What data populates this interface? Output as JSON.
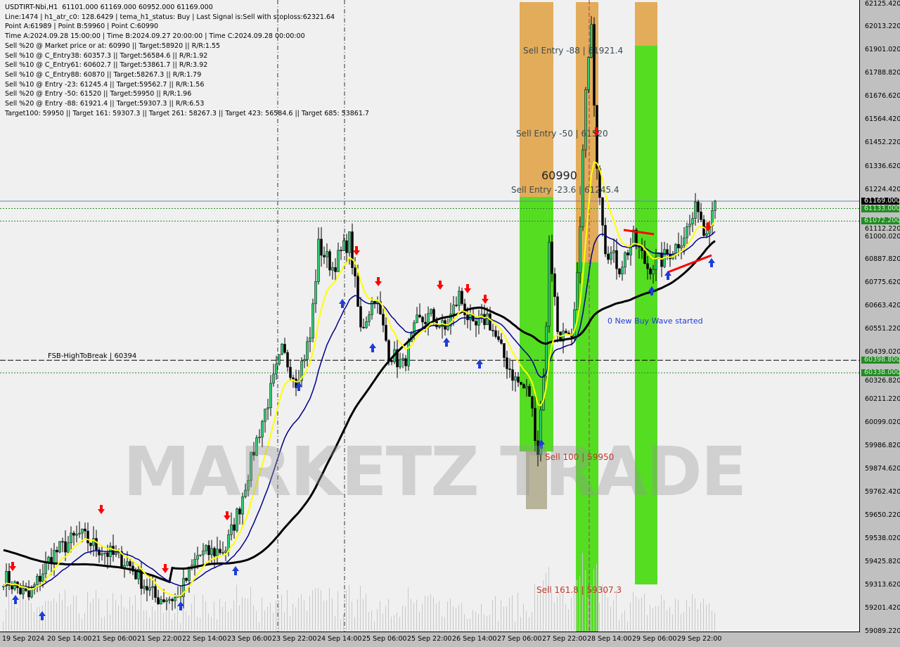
{
  "header": {
    "line1": "USDTIRT-Nbi,H1  61101.000 61169.000 60952.000 61169.000",
    "line2": "Line:1474 | h1_atr_c0: 128.6429 | tema_h1_status: Buy | Last Signal is:Sell with stoploss:62321.64",
    "line3": "Point A:61989 | Point B:59960 | Point C:60990",
    "line4": "Time A:2024.09.28 15:00:00 | Time B:2024.09.27 20:00:00 | Time C:2024.09.28 00:00:00",
    "line5": "Sell %20 @ Market price or at: 60990 || Target:58920 || R/R:1.55",
    "line6": "Sell %10 @ C_Entry38: 60357.3 || Target:56584.6 || R/R:1.92",
    "line7": "Sell %10 @ C_Entry61: 60602.7 || Target:53861.7 || R/R:3.92",
    "line8": "Sell %10 @ C_Entry88: 60870 || Target:58267.3 || R/R:1.79",
    "line9": "Sell %10 @ Entry -23: 61245.4 || Target:59562.7 || R/R:1.56",
    "line10": "Sell %20 @ Entry -50: 61520 || Target:59950 || R/R:1.96",
    "line11": "Sell %20 @ Entry -88: 61921.4 || Target:59307.3 || R/R:6.53",
    "line12": "Target100: 59950 || Target 161: 59307.3 || Target 261: 58267.3 || Target 423: 56584.6 || Target 685: 53861.7"
  },
  "annotations": {
    "fsb": "FSB-HighToBreak | 60394",
    "entry88": "Sell Entry -88 | 61921.4",
    "entry50": "Sell Entry -50 | 61520",
    "entry236": "Sell Entry -23.6 | 61245.4",
    "pointC": "60990",
    "sell100": "Sell 100 | 59950",
    "sell161": "Sell 161.8 | 59307.3",
    "newWave": "0 New Buy Wave started"
  },
  "watermark": "MARKETZ TRADE",
  "colors": {
    "bull": "#2ecc71",
    "bear": "#000000",
    "yellow": "#ffff00",
    "blue": "#00008b",
    "black": "#000000",
    "orange": "#e0a040",
    "green": "#55dd22",
    "red": "#ff0000"
  },
  "chart_data": {
    "type": "candlestick",
    "symbol": "USDTIRT-Nbi",
    "timeframe": "H1",
    "ylim": [
      59089.22,
      62125.42
    ],
    "yticks": [
      "62125.420",
      "62013.220",
      "61901.020",
      "61788.820",
      "61676.620",
      "61564.420",
      "61452.220",
      "61336.620",
      "61224.420",
      "61112.220",
      "61000.020",
      "60887.820",
      "60775.620",
      "60663.420",
      "60551.220",
      "60439.020",
      "60326.820",
      "60211.220",
      "60099.020",
      "59986.820",
      "59874.620",
      "59762.420",
      "59650.220",
      "59538.020",
      "59425.820",
      "59313.620",
      "59201.420",
      "59089.220"
    ],
    "xticks": [
      "19 Sep 2024",
      "20 Sep 14:00",
      "21 Sep 06:00",
      "21 Sep 22:00",
      "22 Sep 14:00",
      "23 Sep 06:00",
      "23 Sep 22:00",
      "24 Sep 14:00",
      "25 Sep 06:00",
      "25 Sep 22:00",
      "26 Sep 14:00",
      "27 Sep 06:00",
      "27 Sep 22:00",
      "28 Sep 14:00",
      "29 Sep 06:00",
      "29 Sep 22:00"
    ],
    "price_markers": [
      {
        "label": "61169.000",
        "kind": "current"
      },
      {
        "label": "61133.000",
        "kind": "level"
      },
      {
        "label": "61072.200",
        "kind": "level"
      },
      {
        "label": "60398.800",
        "kind": "level"
      },
      {
        "label": "60338.000",
        "kind": "level"
      }
    ],
    "levels": [
      61169,
      61133,
      61072.2,
      60398.8,
      60338
    ],
    "close_path": [
      [
        "2024-09-19 22:00",
        59351
      ],
      [
        "2024-09-20 07:00",
        59249
      ],
      [
        "2024-09-20 15:00",
        59453
      ],
      [
        "2024-09-21 01:00",
        59555
      ],
      [
        "2024-09-21 08:00",
        59487
      ],
      [
        "2024-09-21 18:00",
        59419
      ],
      [
        "2024-09-22 04:00",
        59249
      ],
      [
        "2024-09-22 12:00",
        59249
      ],
      [
        "2024-09-22 19:00",
        59453
      ],
      [
        "2024-09-23 05:00",
        59487
      ],
      [
        "2024-09-23 10:00",
        59692
      ],
      [
        "2024-09-23 15:00",
        59964
      ],
      [
        "2024-09-23 20:00",
        60202
      ],
      [
        "2024-09-24 01:00",
        60440
      ],
      [
        "2024-09-24 06:00",
        60304
      ],
      [
        "2024-09-24 11:00",
        60508
      ],
      [
        "2024-09-24 14:00",
        60951
      ],
      [
        "2024-09-24 19:00",
        60849
      ],
      [
        "2024-09-25 01:00",
        60985
      ],
      [
        "2024-09-25 05:00",
        60543
      ],
      [
        "2024-09-25 10:00",
        60713
      ],
      [
        "2024-09-25 15:00",
        60440
      ],
      [
        "2024-09-25 20:00",
        60372
      ],
      [
        "2024-09-26 01:00",
        60577
      ],
      [
        "2024-09-26 06:00",
        60611
      ],
      [
        "2024-09-26 11:00",
        60543
      ],
      [
        "2024-09-26 16:00",
        60713
      ],
      [
        "2024-09-26 21:00",
        60543
      ],
      [
        "2024-09-27 02:00",
        60611
      ],
      [
        "2024-09-27 07:00",
        60440
      ],
      [
        "2024-09-27 12:00",
        60304
      ],
      [
        "2024-09-27 17:00",
        60236
      ],
      [
        "2024-09-27 20:00",
        59960
      ],
      [
        "2024-09-27 23:00",
        60543
      ],
      [
        "2024-09-28 00:00",
        60990
      ],
      [
        "2024-09-28 03:00",
        60543
      ],
      [
        "2024-09-28 08:00",
        60474
      ],
      [
        "2024-09-28 10:00",
        60781
      ],
      [
        "2024-09-28 13:00",
        61700
      ],
      [
        "2024-09-28 15:00",
        61989
      ],
      [
        "2024-09-28 17:00",
        61360
      ],
      [
        "2024-09-28 20:00",
        60951
      ],
      [
        "2024-09-29 01:00",
        60849
      ],
      [
        "2024-09-29 06:00",
        60985
      ],
      [
        "2024-09-29 11:00",
        60849
      ],
      [
        "2024-09-29 16:00",
        60883
      ],
      [
        "2024-09-29 21:00",
        60951
      ],
      [
        "2024-09-30 02:00",
        61053
      ],
      [
        "2024-09-30 05:00",
        61155
      ],
      [
        "2024-09-30 07:00",
        61019
      ],
      [
        "2024-09-30 11:00",
        61169
      ]
    ]
  }
}
